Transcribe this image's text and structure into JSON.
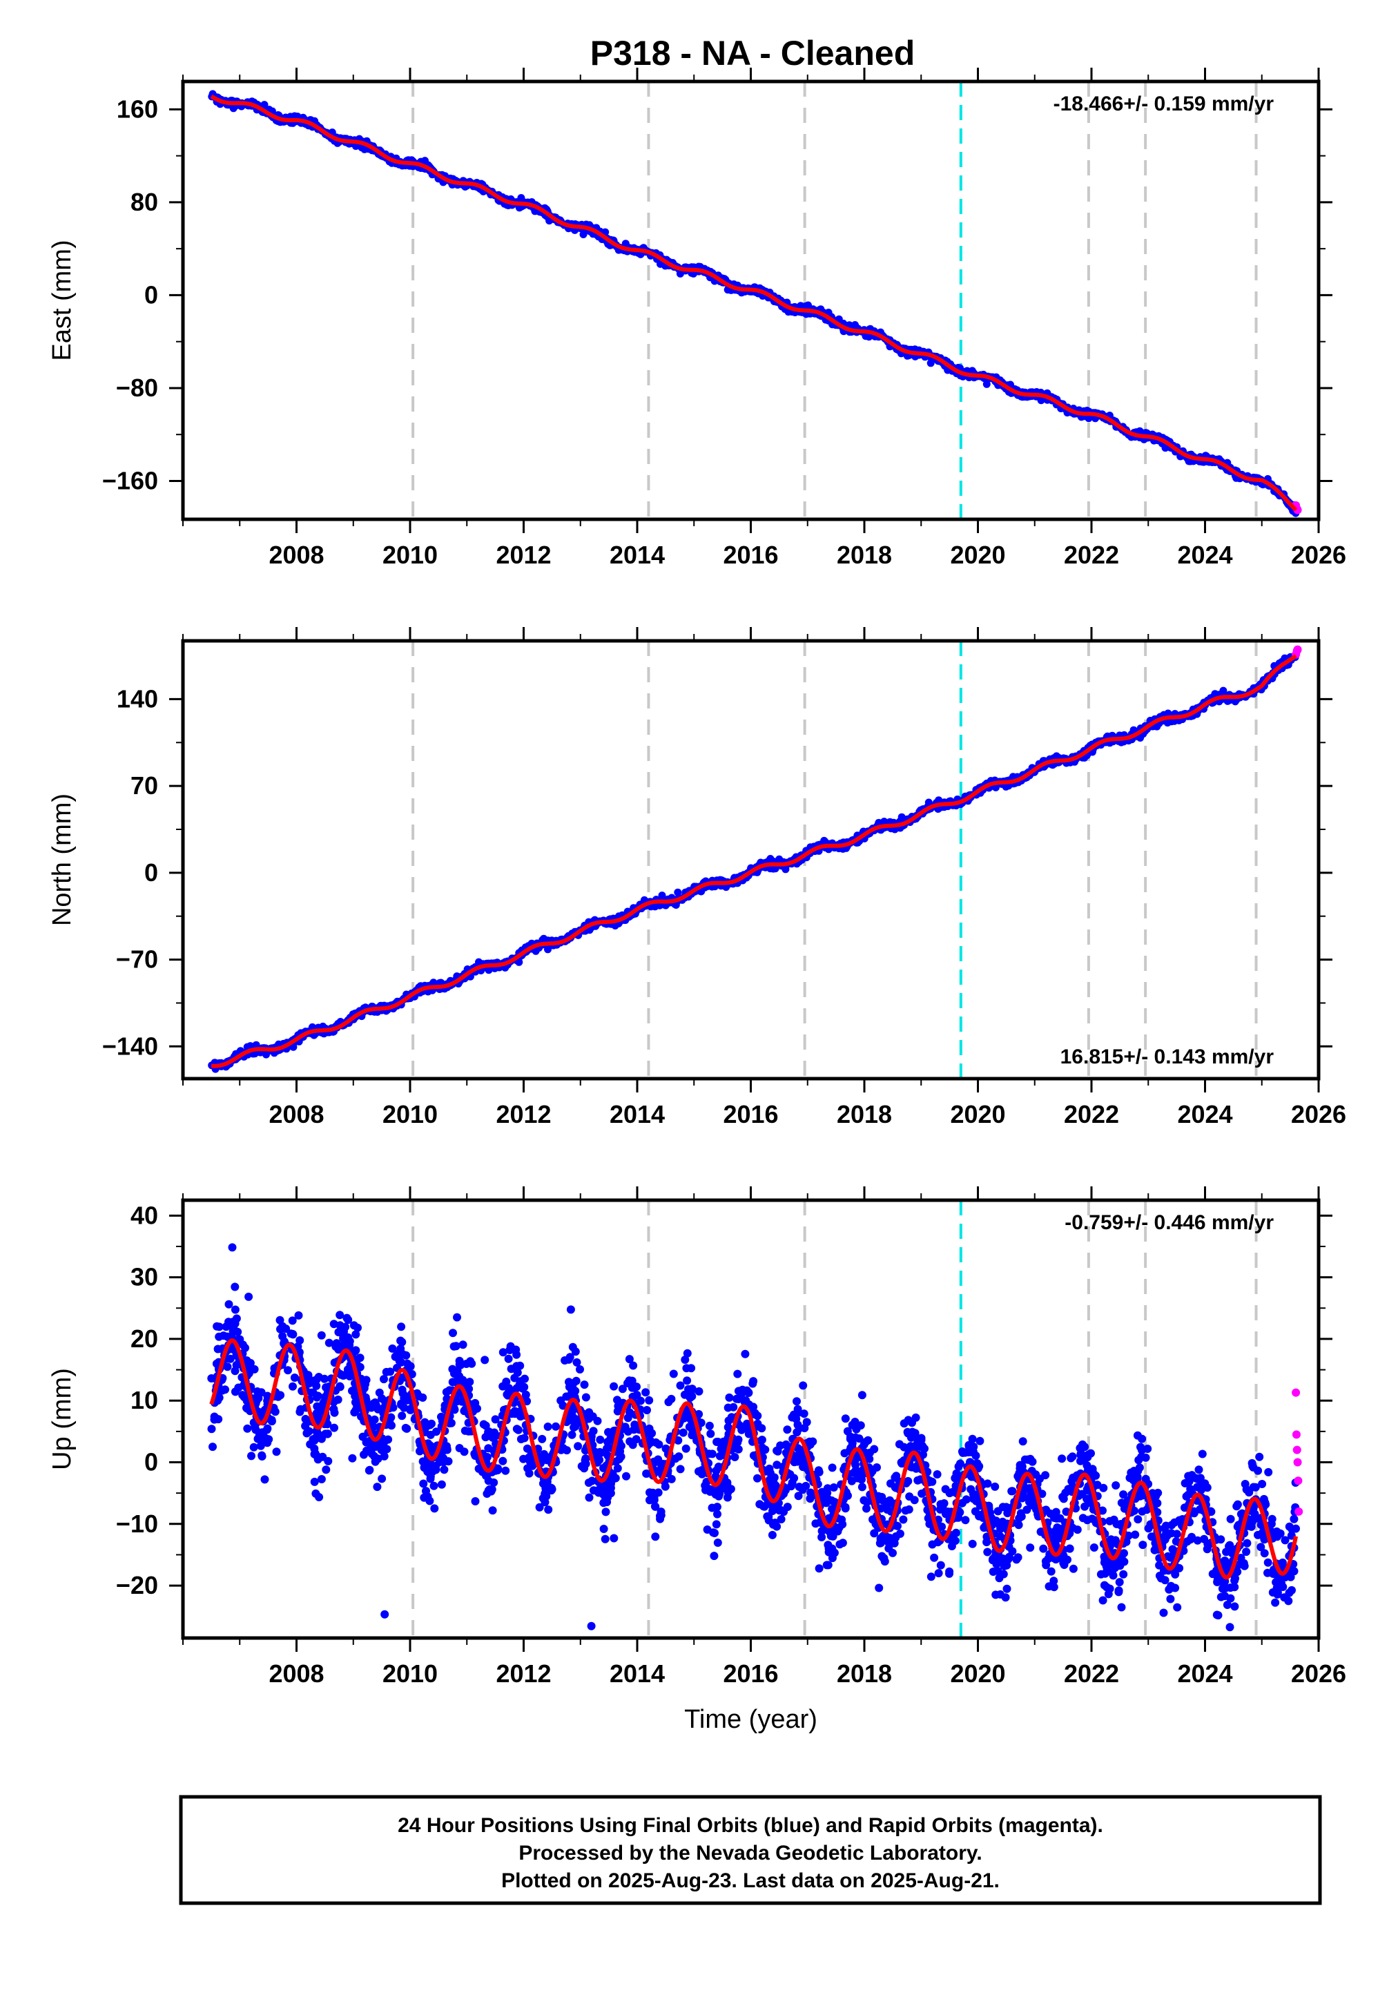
{
  "title": "P318  - NA - Cleaned",
  "colors": {
    "final_orbits": "#0000ff",
    "rapid_orbits": "#ff00ff",
    "model_fit": "#ff0000",
    "equipment_change_line": "#c8c8c8",
    "earthquake_line": "#00e5e5"
  },
  "footer": {
    "line1": "24 Hour Positions Using Final Orbits (blue) and Rapid Orbits (magenta).",
    "line2": "Processed by the Nevada Geodetic Laboratory.",
    "line3": "Plotted on 2025-Aug-23. Last data on 2025-Aug-21."
  },
  "chart_data": [
    {
      "type": "scatter",
      "ylabel": "East (mm)",
      "xlabel": "",
      "rate_label": "-18.466+/- 0.159 mm/yr",
      "rate_position": "top-right",
      "xlim": [
        2006.0,
        2026.0
      ],
      "ylim": [
        -193,
        184
      ],
      "yticks": [
        -160,
        -80,
        0,
        80,
        160
      ],
      "xticks": [
        2008,
        2010,
        2012,
        2014,
        2016,
        2018,
        2020,
        2022,
        2024,
        2026
      ],
      "vlines_gray": [
        2010.05,
        2014.2,
        2016.95,
        2021.95,
        2022.95,
        2024.9
      ],
      "vlines_cyan": [
        2019.7
      ],
      "series": [
        {
          "x": [
            2006.5,
            2008.0,
            2010.0,
            2012.0,
            2014.0,
            2016.0,
            2018.0,
            2020.0,
            2022.0,
            2024.0,
            2025.0,
            2025.6
          ],
          "values": [
            172,
            150,
            113,
            78,
            38,
            4,
            -32,
            -70,
            -103,
            -142,
            -160,
            -183
          ]
        }
      ],
      "rapid_points": {
        "x": [
          2025.6,
          2025.62,
          2025.63
        ],
        "values": [
          -181,
          -184,
          -185
        ]
      }
    },
    {
      "type": "scatter",
      "ylabel": "North (mm)",
      "xlabel": "",
      "rate_label": "16.815+/- 0.143 mm/yr",
      "rate_position": "bottom-right",
      "xlim": [
        2006.0,
        2026.0
      ],
      "ylim": [
        -166,
        187
      ],
      "yticks": [
        -140,
        -70,
        0,
        70,
        140
      ],
      "xticks": [
        2008,
        2010,
        2012,
        2014,
        2016,
        2018,
        2020,
        2022,
        2024,
        2026
      ],
      "vlines_gray": [
        2010.05,
        2014.2,
        2016.95,
        2021.95,
        2022.95,
        2024.9
      ],
      "vlines_cyan": [
        2019.7
      ],
      "series": [
        {
          "x": [
            2006.5,
            2008.0,
            2010.0,
            2012.0,
            2014.0,
            2016.0,
            2018.0,
            2020.0,
            2022.0,
            2024.0,
            2025.0,
            2025.6
          ],
          "values": [
            -155,
            -135,
            -100,
            -65,
            -30,
            0,
            30,
            65,
            100,
            135,
            150,
            177
          ]
        }
      ],
      "rapid_points": {
        "x": [
          2025.6,
          2025.62,
          2025.63
        ],
        "values": [
          176,
          179,
          180
        ]
      }
    },
    {
      "type": "scatter",
      "ylabel": "Up (mm)",
      "xlabel": "Time (year)",
      "rate_label": "-0.759+/- 0.446 mm/yr",
      "rate_position": "top-right",
      "xlim": [
        2006.0,
        2026.0
      ],
      "ylim": [
        -28.5,
        42.5
      ],
      "yticks": [
        -20,
        -10,
        0,
        10,
        20,
        30,
        40
      ],
      "xticks": [
        2008,
        2010,
        2012,
        2014,
        2016,
        2018,
        2020,
        2022,
        2024,
        2026
      ],
      "vlines_gray": [
        2010.05,
        2014.2,
        2016.95,
        2021.95,
        2022.95,
        2024.9
      ],
      "vlines_cyan": [
        2019.7
      ],
      "series": [
        {
          "x": [
            2006.5,
            2007.0,
            2008.0,
            2009.0,
            2010.0,
            2011.0,
            2012.0,
            2013.0,
            2014.0,
            2015.0,
            2016.0,
            2017.0,
            2018.0,
            2019.0,
            2020.0,
            2021.0,
            2022.0,
            2023.0,
            2024.0,
            2025.0,
            2025.6
          ],
          "values": [
            14,
            13,
            12.5,
            11.5,
            8,
            5.5,
            4.5,
            3.5,
            3.5,
            3,
            2.5,
            -3.5,
            -4.5,
            -5,
            -7.5,
            -8.5,
            -8.5,
            -10,
            -12,
            -12.5,
            -11
          ]
        }
      ],
      "rapid_points": {
        "x": [
          2025.6,
          2025.61,
          2025.62,
          2025.63,
          2025.64,
          2025.65
        ],
        "values": [
          11.3,
          4.5,
          2,
          0,
          -3,
          -8
        ]
      }
    }
  ]
}
